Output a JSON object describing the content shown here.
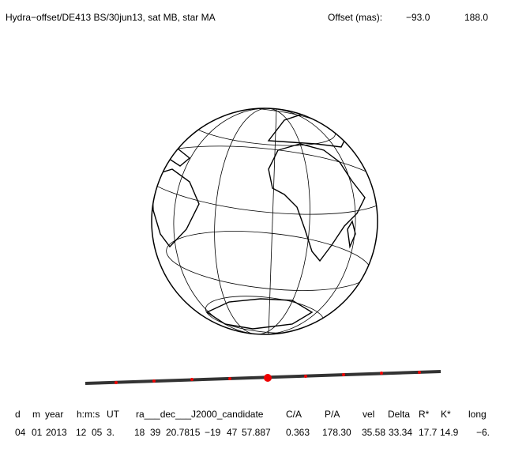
{
  "header": {
    "title": "Hydra−offset/DE413 BS/30jun13, sat MB, star MA",
    "offset_label": "Offset (mas):",
    "offset_values": [
      "−93.0",
      "188.0"
    ]
  },
  "table": {
    "labels": [
      "d",
      "m",
      "year",
      "h:m:s",
      "UT",
      "ra___dec___J2000_candidate",
      "C/A",
      "P/A",
      "vel",
      "Delta",
      "R*",
      "K*",
      "long"
    ],
    "values": [
      "04",
      "01",
      "2013",
      "12",
      "05",
      "3.",
      "18",
      "39",
      "20.7815",
      "−19",
      "47",
      "57.887",
      "0.363",
      "178.30",
      "35.58",
      "33.34",
      "17.7",
      "14.9",
      "−6."
    ]
  }
}
